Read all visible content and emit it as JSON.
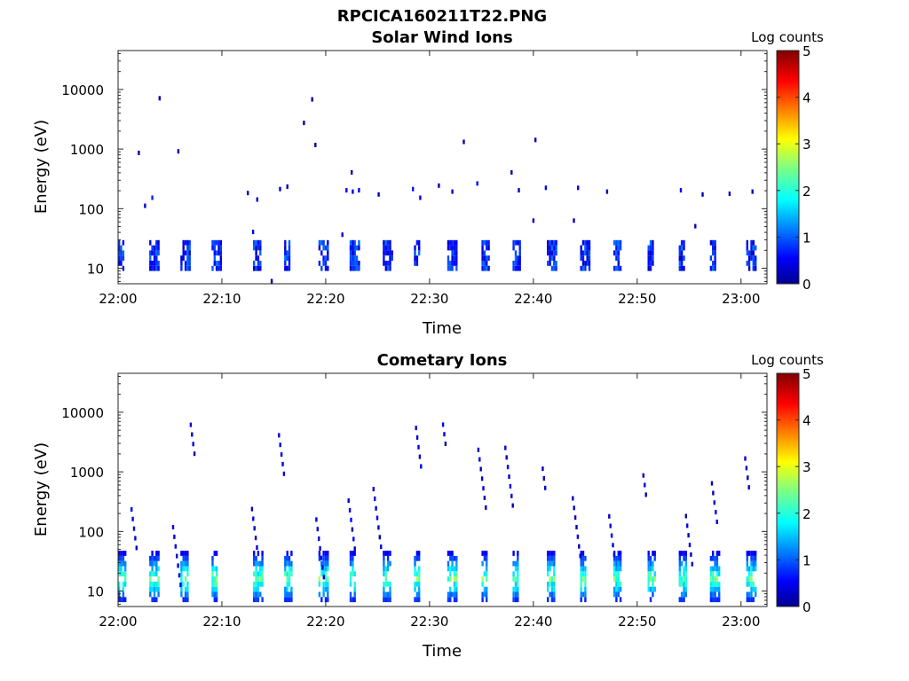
{
  "figure": {
    "title": "RPCICA160211T22.PNG"
  },
  "chart_data": [
    {
      "type": "heatmap",
      "title": "Solar Wind Ions",
      "xlabel": "Time",
      "ylabel": "Energy (eV)",
      "y_scale": "log",
      "ylim": [
        5.5,
        45000
      ],
      "x_tick_labels": [
        "22:00",
        "22:10",
        "22:20",
        "22:30",
        "22:40",
        "22:50",
        "23:00"
      ],
      "y_tick_labels": [
        "10",
        "100",
        "1000",
        "10000"
      ],
      "colorbar": {
        "label": "Log counts",
        "range": [
          0,
          5
        ],
        "ticks": [
          "0",
          "1",
          "2",
          "3",
          "4",
          "5"
        ],
        "colormap": "jet"
      },
      "low_energy_band_times_min": [
        0,
        3,
        6,
        9,
        13,
        16,
        19.3,
        22.3,
        25.5,
        28.5,
        31.7,
        35,
        38,
        41.3,
        44.5,
        47.7,
        51,
        54,
        57,
        60.5
      ],
      "low_energy_band_ev": [
        9,
        28
      ],
      "sparse_points": [
        {
          "t": 3.9,
          "e": 7000,
          "v": 0.2
        },
        {
          "t": 18.6,
          "e": 6700,
          "v": 0.2
        },
        {
          "t": 17.8,
          "e": 2700,
          "v": 0.2
        },
        {
          "t": 18.9,
          "e": 1150,
          "v": 0.2
        },
        {
          "t": 5.7,
          "e": 900,
          "v": 0.2
        },
        {
          "t": 1.9,
          "e": 850,
          "v": 0.2
        },
        {
          "t": 33.2,
          "e": 1300,
          "v": 0.2
        },
        {
          "t": 40.1,
          "e": 1400,
          "v": 0.2
        },
        {
          "t": 37.8,
          "e": 400,
          "v": 0.2
        },
        {
          "t": 22.4,
          "e": 400,
          "v": 0.2
        },
        {
          "t": 3.2,
          "e": 150,
          "v": 0.8
        },
        {
          "t": 2.5,
          "e": 110,
          "v": 0.4
        },
        {
          "t": 12.4,
          "e": 180,
          "v": 0.3
        },
        {
          "t": 13.3,
          "e": 140,
          "v": 0.3
        },
        {
          "t": 15.5,
          "e": 210,
          "v": 0.5
        },
        {
          "t": 16.2,
          "e": 230,
          "v": 0.3
        },
        {
          "t": 21.9,
          "e": 200,
          "v": 0.6
        },
        {
          "t": 22.5,
          "e": 190,
          "v": 0.5
        },
        {
          "t": 23.1,
          "e": 200,
          "v": 0.5
        },
        {
          "t": 25.0,
          "e": 170,
          "v": 0.3
        },
        {
          "t": 28.3,
          "e": 210,
          "v": 0.7
        },
        {
          "t": 29.0,
          "e": 150,
          "v": 0.5
        },
        {
          "t": 30.8,
          "e": 240,
          "v": 0.3
        },
        {
          "t": 32.1,
          "e": 190,
          "v": 0.4
        },
        {
          "t": 34.5,
          "e": 260,
          "v": 0.7
        },
        {
          "t": 38.5,
          "e": 200,
          "v": 0.3
        },
        {
          "t": 41.1,
          "e": 220,
          "v": 0.6
        },
        {
          "t": 44.2,
          "e": 220,
          "v": 0.6
        },
        {
          "t": 47.0,
          "e": 190,
          "v": 0.3
        },
        {
          "t": 54.1,
          "e": 200,
          "v": 0.6
        },
        {
          "t": 56.2,
          "e": 170,
          "v": 0.3
        },
        {
          "t": 58.8,
          "e": 175,
          "v": 0.3
        },
        {
          "t": 61.0,
          "e": 190,
          "v": 0.3
        },
        {
          "t": 39.9,
          "e": 62,
          "v": 0.3
        },
        {
          "t": 43.8,
          "e": 62,
          "v": 0.3
        },
        {
          "t": 55.5,
          "e": 50,
          "v": 0.3
        },
        {
          "t": 12.9,
          "e": 40,
          "v": 0.5
        },
        {
          "t": 21.5,
          "e": 36,
          "v": 0.4
        },
        {
          "t": 14.7,
          "e": 6,
          "v": 0.2
        }
      ]
    },
    {
      "type": "heatmap",
      "title": "Cometary Ions",
      "xlabel": "Time",
      "ylabel": "Energy (eV)",
      "y_scale": "log",
      "ylim": [
        5.5,
        45000
      ],
      "x_tick_labels": [
        "22:00",
        "22:10",
        "22:20",
        "22:30",
        "22:40",
        "22:50",
        "23:00"
      ],
      "y_tick_labels": [
        "10",
        "100",
        "1000",
        "10000"
      ],
      "colorbar": {
        "label": "Log counts",
        "range": [
          0,
          5
        ],
        "ticks": [
          "0",
          "1",
          "2",
          "3",
          "4",
          "5"
        ],
        "colormap": "jet"
      },
      "low_energy_band_times_min": [
        0,
        3,
        6,
        9,
        13,
        16,
        19.3,
        22.3,
        25.5,
        28.5,
        31.7,
        35,
        38,
        41.3,
        44.5,
        47.7,
        51,
        54,
        57,
        60.5
      ],
      "low_energy_band_ev": [
        6.5,
        40
      ],
      "high_energy_streak_times_min": [
        1.2,
        5.2,
        6.9,
        12.8,
        15.4,
        19.0,
        22.1,
        24.5,
        28.6,
        31.2,
        34.6,
        37.2,
        40.8,
        43.7,
        47.2,
        50.5,
        54.6,
        57.1,
        60.3
      ]
    }
  ]
}
